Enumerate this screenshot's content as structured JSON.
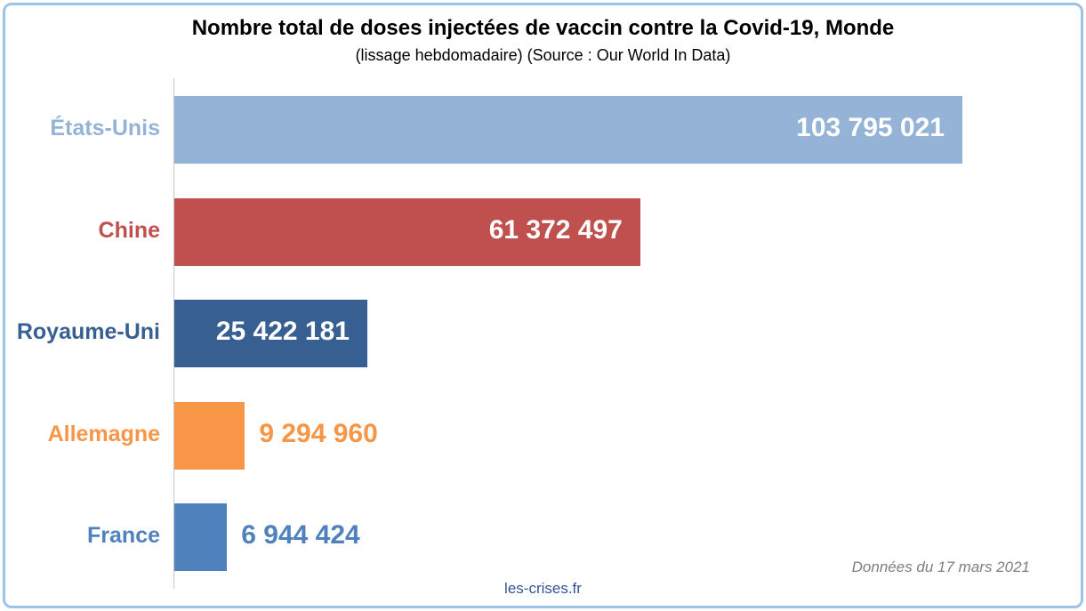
{
  "chart_data": {
    "type": "bar",
    "orientation": "horizontal",
    "title": "Nombre total de doses injectées de vaccin contre la Covid-19, Monde",
    "subtitle": "(lissage hebdomadaire) (Source : Our World In Data)",
    "categories": [
      "États-Unis",
      "Chine",
      "Royaume-Uni",
      "Allemagne",
      "France"
    ],
    "values": [
      103795021,
      61372497,
      25422181,
      9294960,
      6944424
    ],
    "value_labels": [
      "103 795 021",
      "61 372 497",
      "25 422 181",
      "9 294 960",
      "6 944 424"
    ],
    "colors": [
      "#95b3d7",
      "#c0504d",
      "#375f92",
      "#f79646",
      "#4f81bd"
    ],
    "xlim": [
      0,
      105000000
    ],
    "grid": false,
    "legend": "none"
  },
  "footer": {
    "date_note": "Données du 17 mars 2021",
    "source": "les-crises.fr"
  }
}
